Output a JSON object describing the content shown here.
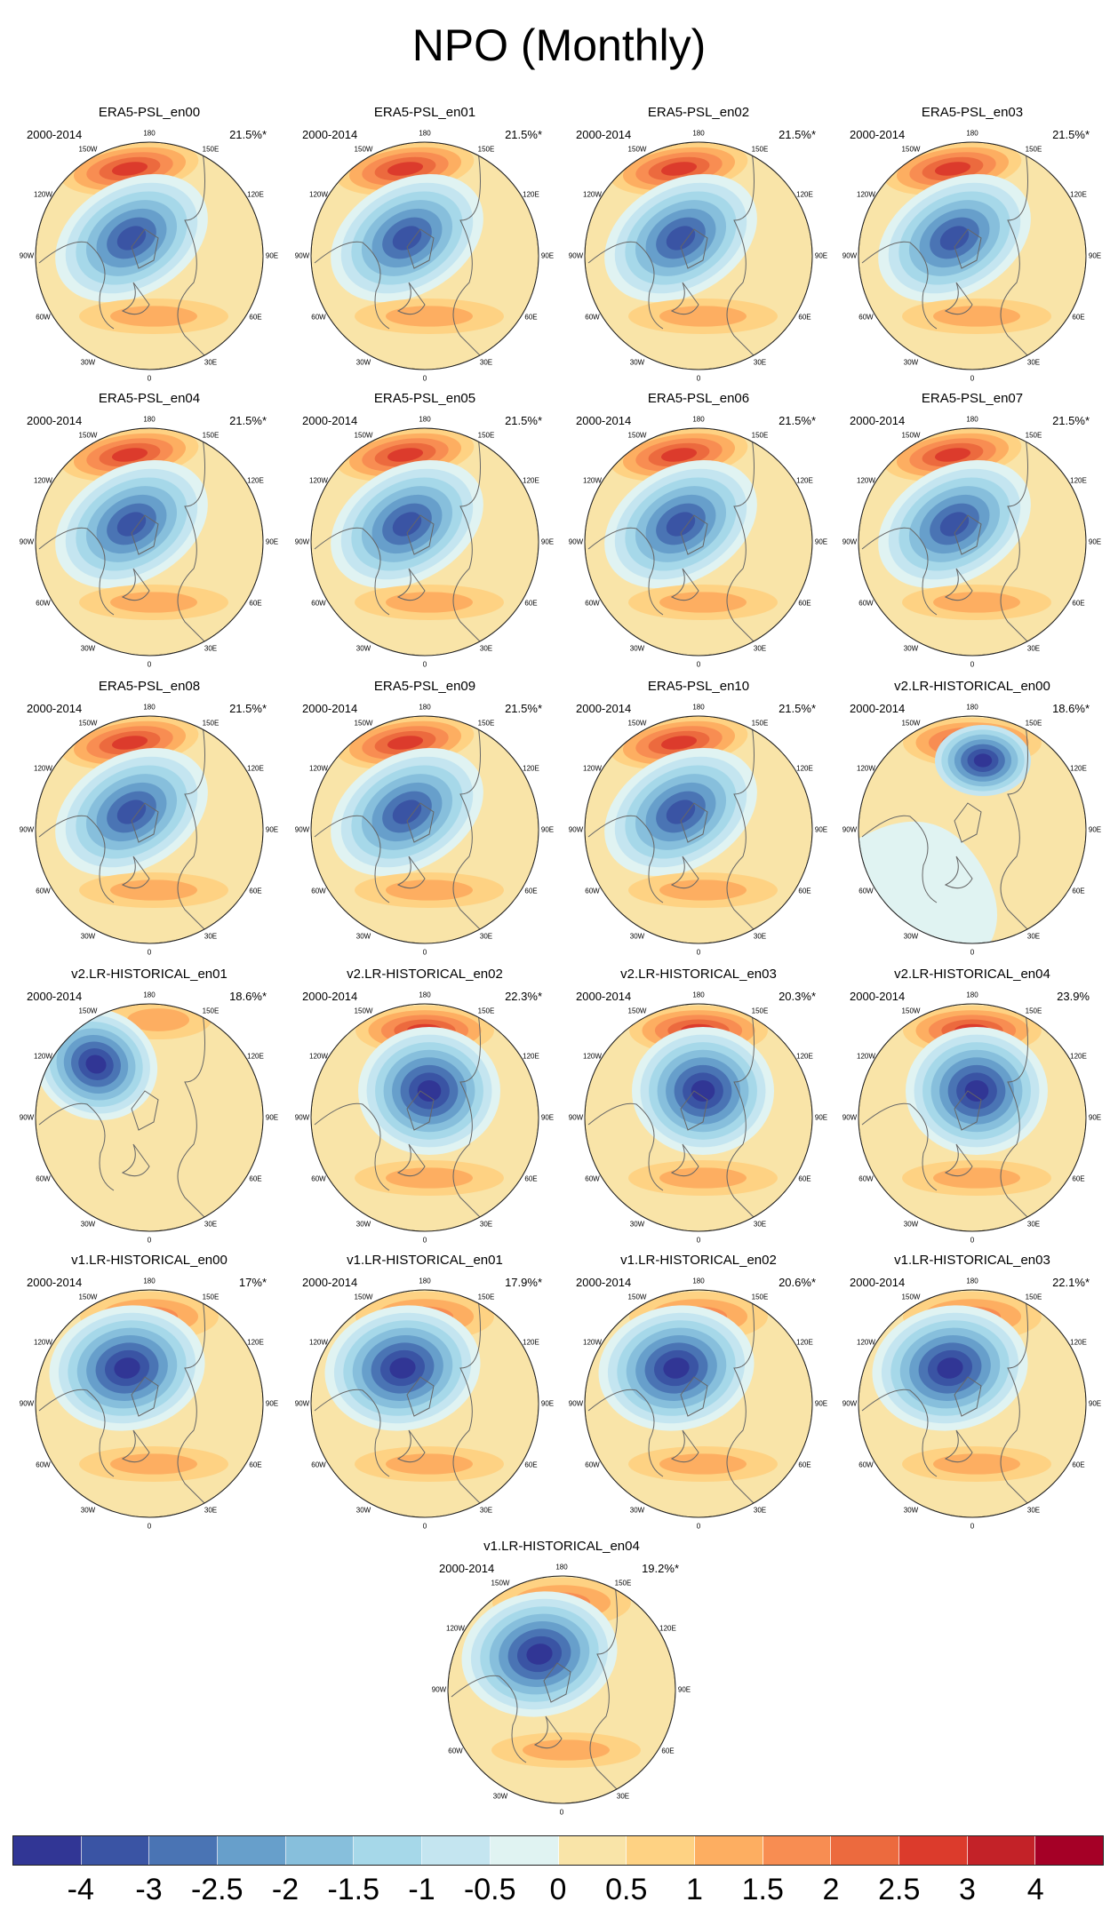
{
  "title": "NPO (Monthly)",
  "chart_data": {
    "type": "heatmap",
    "description_kind": "small multiples of polar stereographic EOF maps",
    "period": "2000-2014",
    "longitude_labels": [
      "180",
      "150W",
      "150E",
      "120W",
      "120E",
      "90W",
      "90E",
      "60W",
      "60E",
      "30W",
      "30E",
      "0"
    ],
    "panels": [
      {
        "title": "ERA5-PSL_en00",
        "period": "2000-2014",
        "variance": "21.5%*",
        "variance_value": 21.5,
        "significant": true
      },
      {
        "title": "ERA5-PSL_en01",
        "period": "2000-2014",
        "variance": "21.5%*",
        "variance_value": 21.5,
        "significant": true
      },
      {
        "title": "ERA5-PSL_en02",
        "period": "2000-2014",
        "variance": "21.5%*",
        "variance_value": 21.5,
        "significant": true
      },
      {
        "title": "ERA5-PSL_en03",
        "period": "2000-2014",
        "variance": "21.5%*",
        "variance_value": 21.5,
        "significant": true
      },
      {
        "title": "ERA5-PSL_en04",
        "period": "2000-2014",
        "variance": "21.5%*",
        "variance_value": 21.5,
        "significant": true
      },
      {
        "title": "ERA5-PSL_en05",
        "period": "2000-2014",
        "variance": "21.5%*",
        "variance_value": 21.5,
        "significant": true
      },
      {
        "title": "ERA5-PSL_en06",
        "period": "2000-2014",
        "variance": "21.5%*",
        "variance_value": 21.5,
        "significant": true
      },
      {
        "title": "ERA5-PSL_en07",
        "period": "2000-2014",
        "variance": "21.5%*",
        "variance_value": 21.5,
        "significant": true
      },
      {
        "title": "ERA5-PSL_en08",
        "period": "2000-2014",
        "variance": "21.5%*",
        "variance_value": 21.5,
        "significant": true
      },
      {
        "title": "ERA5-PSL_en09",
        "period": "2000-2014",
        "variance": "21.5%*",
        "variance_value": 21.5,
        "significant": true
      },
      {
        "title": "ERA5-PSL_en10",
        "period": "2000-2014",
        "variance": "21.5%*",
        "variance_value": 21.5,
        "significant": true
      },
      {
        "title": "v2.LR-HISTORICAL_en00",
        "period": "2000-2014",
        "variance": "18.6%*",
        "variance_value": 18.6,
        "significant": true
      },
      {
        "title": "v2.LR-HISTORICAL_en01",
        "period": "2000-2014",
        "variance": "18.6%*",
        "variance_value": 18.6,
        "significant": true
      },
      {
        "title": "v2.LR-HISTORICAL_en02",
        "period": "2000-2014",
        "variance": "22.3%*",
        "variance_value": 22.3,
        "significant": true
      },
      {
        "title": "v2.LR-HISTORICAL_en03",
        "period": "2000-2014",
        "variance": "20.3%*",
        "variance_value": 20.3,
        "significant": true
      },
      {
        "title": "v2.LR-HISTORICAL_en04",
        "period": "2000-2014",
        "variance": "23.9%",
        "variance_value": 23.9,
        "significant": false
      },
      {
        "title": "v1.LR-HISTORICAL_en00",
        "period": "2000-2014",
        "variance": "17%*",
        "variance_value": 17,
        "significant": true
      },
      {
        "title": "v1.LR-HISTORICAL_en01",
        "period": "2000-2014",
        "variance": "17.9%*",
        "variance_value": 17.9,
        "significant": true
      },
      {
        "title": "v1.LR-HISTORICAL_en02",
        "period": "2000-2014",
        "variance": "20.6%*",
        "variance_value": 20.6,
        "significant": true
      },
      {
        "title": "v1.LR-HISTORICAL_en03",
        "period": "2000-2014",
        "variance": "22.1%*",
        "variance_value": 22.1,
        "significant": true
      },
      {
        "title": "v1.LR-HISTORICAL_en04",
        "period": "2000-2014",
        "variance": "19.2%*",
        "variance_value": 19.2,
        "significant": true
      }
    ],
    "colorbar": {
      "levels": [
        -4,
        -3,
        -2.5,
        -2,
        -1.5,
        -1,
        -0.5,
        0,
        0.5,
        1,
        1.5,
        2,
        2.5,
        3,
        4
      ],
      "tick_labels": [
        "-4",
        "-3",
        "-2.5",
        "-2",
        "-1.5",
        "-1",
        "-0.5",
        "0",
        "0.5",
        "1",
        "1.5",
        "2",
        "2.5",
        "3",
        "4"
      ],
      "colors": [
        "#313695",
        "#3a54a4",
        "#4a74b4",
        "#679fcb",
        "#87bfdc",
        "#a6d8e9",
        "#c4e5f0",
        "#e0f3f2",
        "#f9e4a8",
        "#fed283",
        "#fdae61",
        "#f88d52",
        "#ec6a3e",
        "#dc3b2c",
        "#c32228",
        "#a50026"
      ]
    }
  }
}
